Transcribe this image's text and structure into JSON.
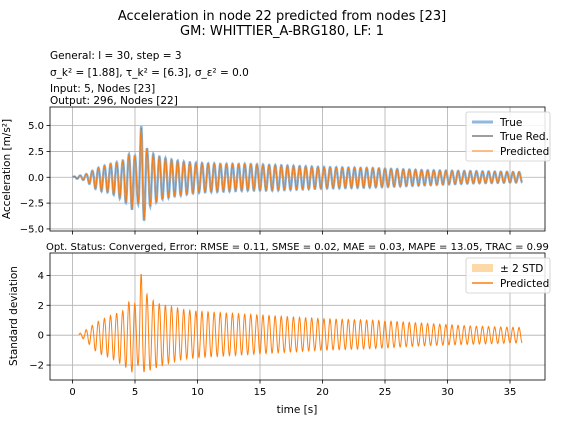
{
  "figure": {
    "title_line1": "Acceleration in node 22 predicted from nodes [23]",
    "title_line2": "GM: WHITTIER_A-BRG180, LF: 1",
    "info": {
      "general": "General: l = 30, step = 3",
      "sigma": "σ_k² = [1.88], τ_k² = [6.3], σ_ε² = 0.0",
      "input": "Input: 5, Nodes [23]",
      "output": "Output: 296, Nodes [22]"
    },
    "status_text": "Opt. Status: Converged, Error: RMSE = 0.11, SMSE = 0.02, MAE = 0.03, MAPE = 13.05, TRAC = 0.99"
  },
  "colors": {
    "true": "#8fb9df",
    "true_red": "#7f7f7f",
    "predicted": "#ff7f0e",
    "band": "#fdd9a8",
    "grid": "#b0b0b0"
  },
  "chart_data": [
    {
      "type": "line",
      "ylabel": "Acceleration [m/s²]",
      "xlim": [
        -1.8,
        37.8
      ],
      "ylim": [
        -5.2,
        6.8
      ],
      "xticks": [
        0,
        5,
        10,
        15,
        20,
        25,
        30,
        35
      ],
      "yticks": [
        -5.0,
        -2.5,
        0.0,
        2.5,
        5.0
      ],
      "ytick_labels": [
        "−5.0",
        "−2.5",
        "0.0",
        "2.5",
        "5.0"
      ],
      "grid": true,
      "legend_position": "upper-right",
      "legend": [
        "True",
        "True Red.",
        "Predicted"
      ],
      "series": [
        {
          "name": "True",
          "style": "thick-light-blue"
        },
        {
          "name": "True Red.",
          "style": "thin-gray"
        },
        {
          "name": "Predicted",
          "style": "thin-orange"
        }
      ],
      "envelope": {
        "t": [
          0,
          1,
          2,
          3,
          4,
          4.8,
          5.2,
          5.6,
          6,
          7,
          8,
          9,
          10,
          12,
          14,
          16,
          18,
          20,
          24,
          28,
          32,
          36
        ],
        "pos": [
          0.05,
          0.25,
          0.9,
          1.3,
          1.6,
          2.6,
          1.6,
          6.2,
          2.5,
          2.0,
          1.7,
          1.5,
          1.4,
          1.3,
          1.3,
          1.2,
          1.1,
          1.0,
          0.9,
          0.7,
          0.6,
          0.5
        ],
        "neg": [
          -0.05,
          -0.3,
          -1.3,
          -1.5,
          -2.2,
          -3.2,
          -2.3,
          -4.8,
          -3.0,
          -2.2,
          -1.9,
          -1.7,
          -1.5,
          -1.4,
          -1.3,
          -1.3,
          -1.2,
          -1.1,
          -1.0,
          -0.8,
          -0.6,
          -0.5
        ]
      }
    },
    {
      "type": "line",
      "ylabel": "Standard deviation",
      "xlabel": "time [s]",
      "xlim": [
        -1.8,
        37.8
      ],
      "ylim": [
        -3.0,
        5.5
      ],
      "xticks": [
        0,
        5,
        10,
        15,
        20,
        25,
        30,
        35
      ],
      "xtick_labels": [
        "0",
        "5",
        "10",
        "15",
        "20",
        "25",
        "30",
        "35"
      ],
      "yticks": [
        -2,
        0,
        2,
        4
      ],
      "ytick_labels": [
        "−2",
        "0",
        "2",
        "4"
      ],
      "grid": true,
      "legend_position": "upper-right",
      "legend": [
        "± 2 STD",
        "Predicted"
      ],
      "series": [
        {
          "name": "± 2 STD",
          "style": "band"
        },
        {
          "name": "Predicted",
          "style": "orange"
        }
      ],
      "envelope": {
        "t": [
          0.5,
          1,
          2,
          3,
          4,
          4.8,
          5.2,
          5.6,
          6,
          7,
          8,
          9,
          10,
          12,
          14,
          16,
          18,
          20,
          24,
          28,
          32,
          36
        ],
        "pos": [
          0.05,
          0.3,
          0.9,
          1.3,
          1.6,
          2.6,
          1.6,
          5.1,
          2.5,
          2.1,
          1.9,
          1.7,
          1.6,
          1.5,
          1.4,
          1.3,
          1.2,
          1.1,
          1.0,
          0.8,
          0.6,
          0.5
        ],
        "neg": [
          -0.05,
          -0.3,
          -1.2,
          -1.5,
          -2.0,
          -2.5,
          -2.0,
          -2.5,
          -2.4,
          -2.1,
          -1.8,
          -1.6,
          -1.5,
          -1.4,
          -1.3,
          -1.2,
          -1.1,
          -1.0,
          -0.9,
          -0.7,
          -0.6,
          -0.5
        ]
      }
    }
  ]
}
